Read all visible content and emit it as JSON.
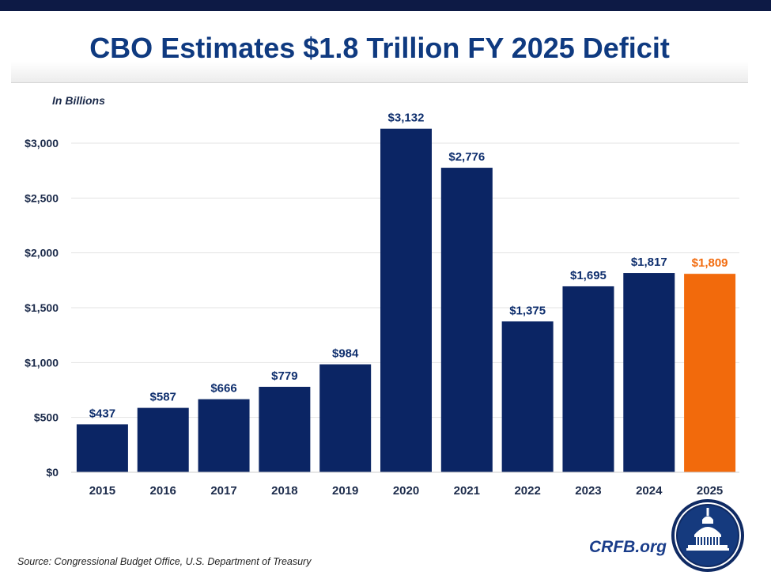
{
  "title": "CBO Estimates $1.8 Trillion FY 2025 Deficit",
  "source": "Source: Congressional Budget Office, U.S. Department of Treasury",
  "brand": "CRFB.org",
  "logo_icon": "capitol-dome-icon",
  "colors": {
    "bar": "#0b2564",
    "highlight": "#f26a0c",
    "title": "#0f3a80",
    "label": "#1b2a4a"
  },
  "chart_data": {
    "type": "bar",
    "title": "CBO Estimates $1.8 Trillion FY 2025 Deficit",
    "ylabel": "In Billions",
    "xlabel": "",
    "categories": [
      "2015",
      "2016",
      "2017",
      "2018",
      "2019",
      "2020",
      "2021",
      "2022",
      "2023",
      "2024",
      "2025"
    ],
    "values": [
      437,
      587,
      666,
      779,
      984,
      3132,
      2776,
      1375,
      1695,
      1817,
      1809
    ],
    "value_labels": [
      "$437",
      "$587",
      "$666",
      "$779",
      "$984",
      "$3,132",
      "$2,776",
      "$1,375",
      "$1,695",
      "$1,817",
      "$1,809"
    ],
    "highlight_category": "2025",
    "ylim": [
      0,
      3000
    ],
    "yticks": [
      0,
      500,
      1000,
      1500,
      2000,
      2500,
      3000
    ],
    "ytick_labels": [
      "$0",
      "$500",
      "$1,000",
      "$1,500",
      "$2,000",
      "$2,500",
      "$3,000"
    ],
    "grid": true,
    "legend": "none"
  }
}
